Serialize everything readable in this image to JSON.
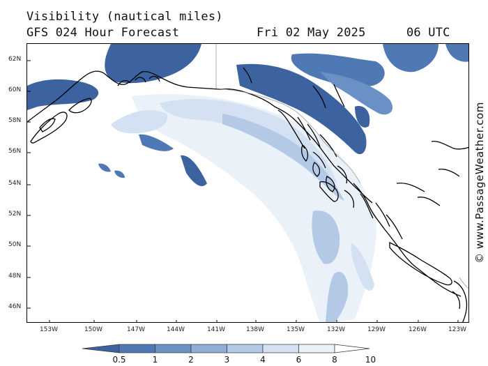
{
  "header": {
    "title": "Visibility (nautical miles)",
    "subtitle": "GFS 024 Hour Forecast",
    "date": "Fri 02 May 2025",
    "time": "06 UTC"
  },
  "watermark": "© www.PassageWeather.com",
  "map": {
    "lat_labels": [
      "62N",
      "60N",
      "58N",
      "56N",
      "54N",
      "52N",
      "50N",
      "48N",
      "46N"
    ],
    "lon_labels": [
      "153W",
      "150W",
      "147W",
      "144W",
      "141W",
      "138W",
      "135W",
      "132W",
      "129W",
      "126W",
      "123W"
    ],
    "colors": {
      "vis_0_5": "#3c62a0",
      "vis_1": "#4f79b4",
      "vis_2": "#6a91c6",
      "vis_3": "#8eaed6",
      "vis_4": "#b3c9e6",
      "vis_6": "#d3e1f2",
      "vis_8": "#ebf1f9",
      "vis_10": "#ffffff",
      "coastline": "#000000",
      "border": "#999999"
    }
  },
  "legend": {
    "labels": [
      "0.5",
      "1",
      "2",
      "3",
      "4",
      "6",
      "8",
      "10"
    ],
    "colors": [
      "#3c62a0",
      "#4f79b4",
      "#6a91c6",
      "#8eaed6",
      "#b3c9e6",
      "#d3e1f2",
      "#ebf1f9",
      "#ffffff"
    ]
  }
}
